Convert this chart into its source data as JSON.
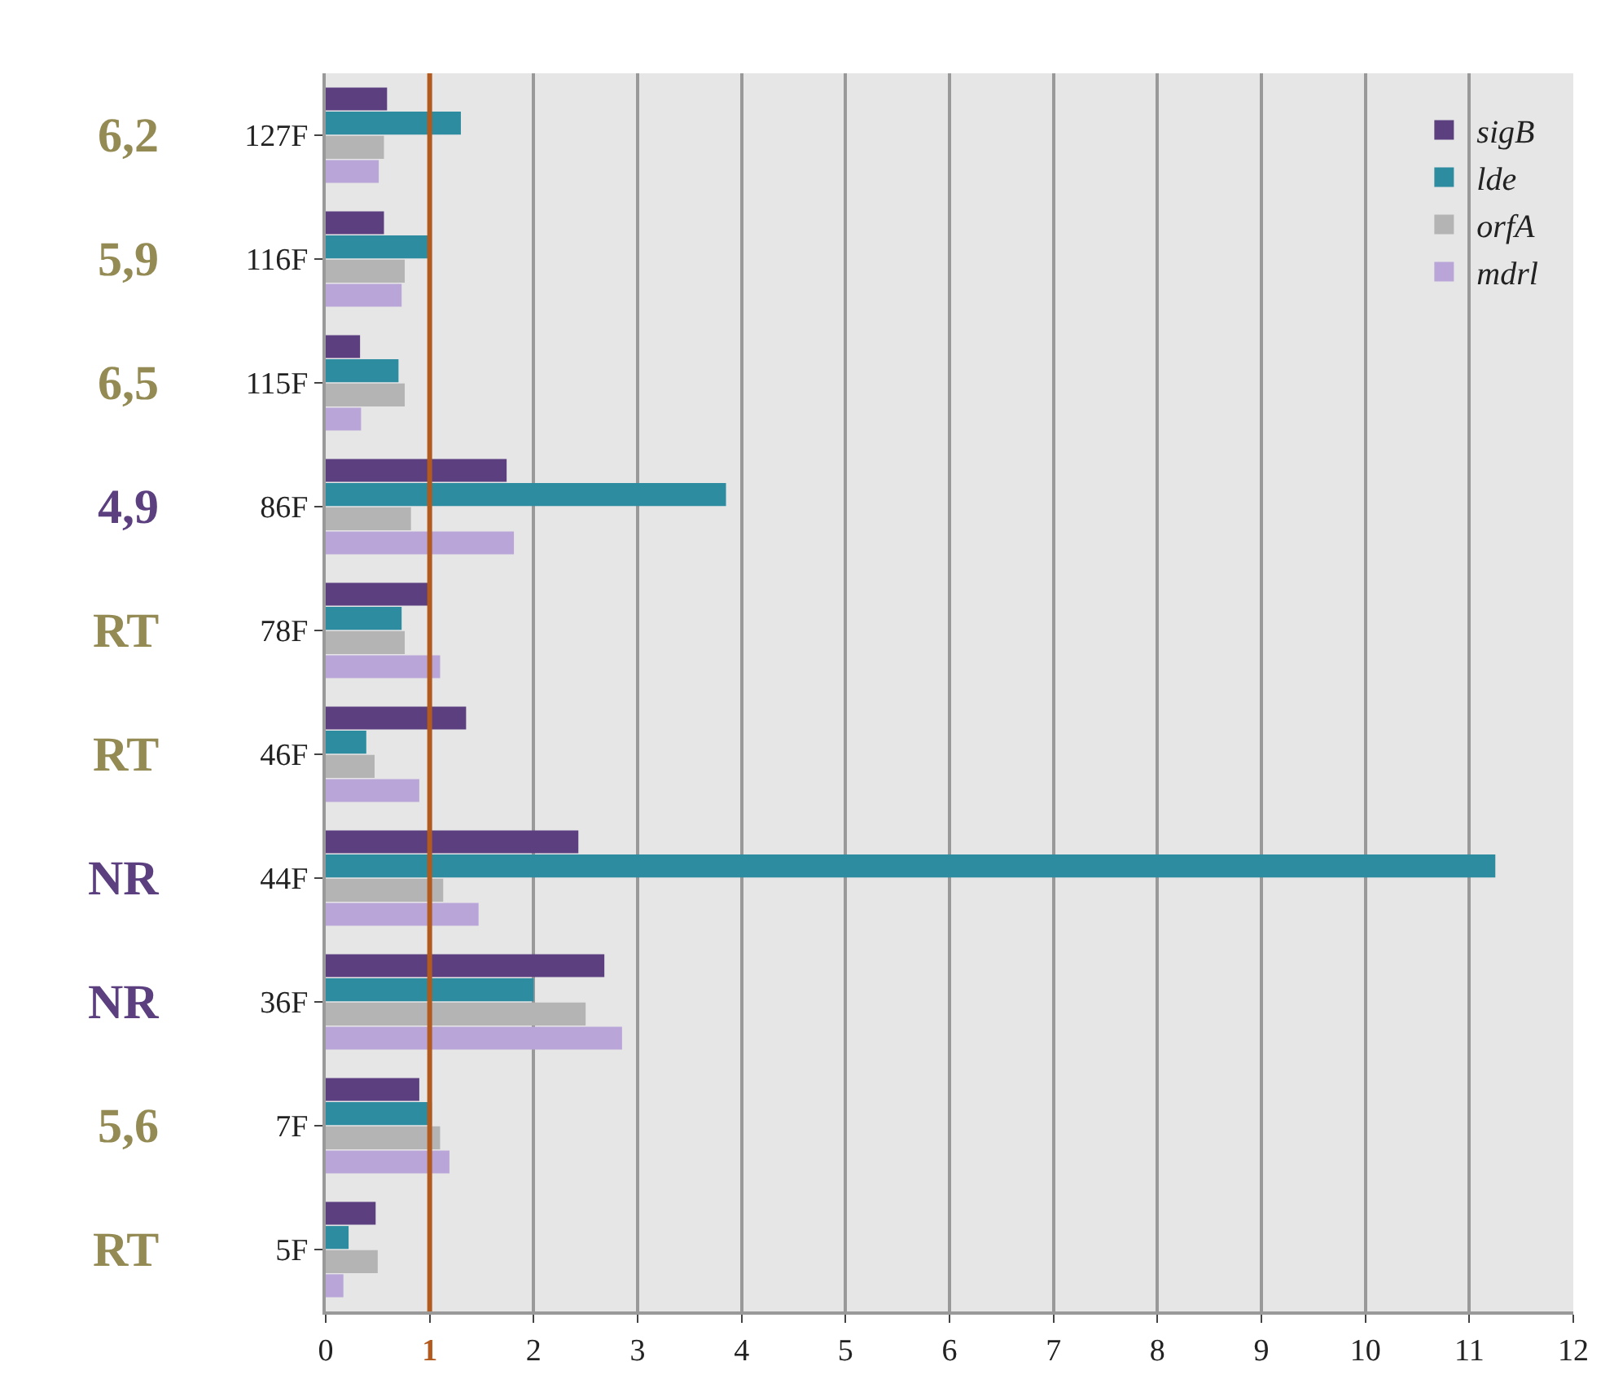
{
  "chart_data": {
    "type": "bar",
    "orientation": "horizontal",
    "categories": [
      "127F",
      "116F",
      "115F",
      "86F",
      "78F",
      "46F",
      "44F",
      "36F",
      "7F",
      "5F"
    ],
    "series": [
      {
        "name": "sigB",
        "color": "#5b3f7f",
        "values": [
          0.59,
          0.56,
          0.33,
          1.74,
          1.01,
          1.35,
          2.43,
          2.68,
          0.9,
          0.48
        ]
      },
      {
        "name": "lde",
        "color": "#2e8ca0",
        "values": [
          1.3,
          0.98,
          0.7,
          3.85,
          0.73,
          0.39,
          11.25,
          2.0,
          1.02,
          0.22
        ]
      },
      {
        "name": "orfA",
        "color": "#b4b4b4",
        "values": [
          0.56,
          0.76,
          0.76,
          0.82,
          0.76,
          0.47,
          1.13,
          2.5,
          1.1,
          0.5
        ]
      },
      {
        "name": "mdrl",
        "color": "#b9a5d8",
        "values": [
          0.51,
          0.73,
          0.34,
          1.81,
          1.1,
          0.9,
          1.47,
          2.85,
          1.19,
          0.17
        ]
      }
    ],
    "xlim": [
      0,
      12
    ],
    "xticks": [
      0,
      1,
      2,
      3,
      4,
      5,
      6,
      7,
      8,
      9,
      10,
      11,
      12
    ],
    "ref_lines": [
      {
        "axis": "x",
        "value": 1,
        "color": "#b35a1f"
      }
    ],
    "annotations": [
      "6,2",
      "5,9",
      "6,5",
      "4,9",
      "RT",
      "RT",
      "NR",
      "NR",
      "5,6",
      "RT"
    ],
    "grid": "x",
    "legend": "top right"
  }
}
